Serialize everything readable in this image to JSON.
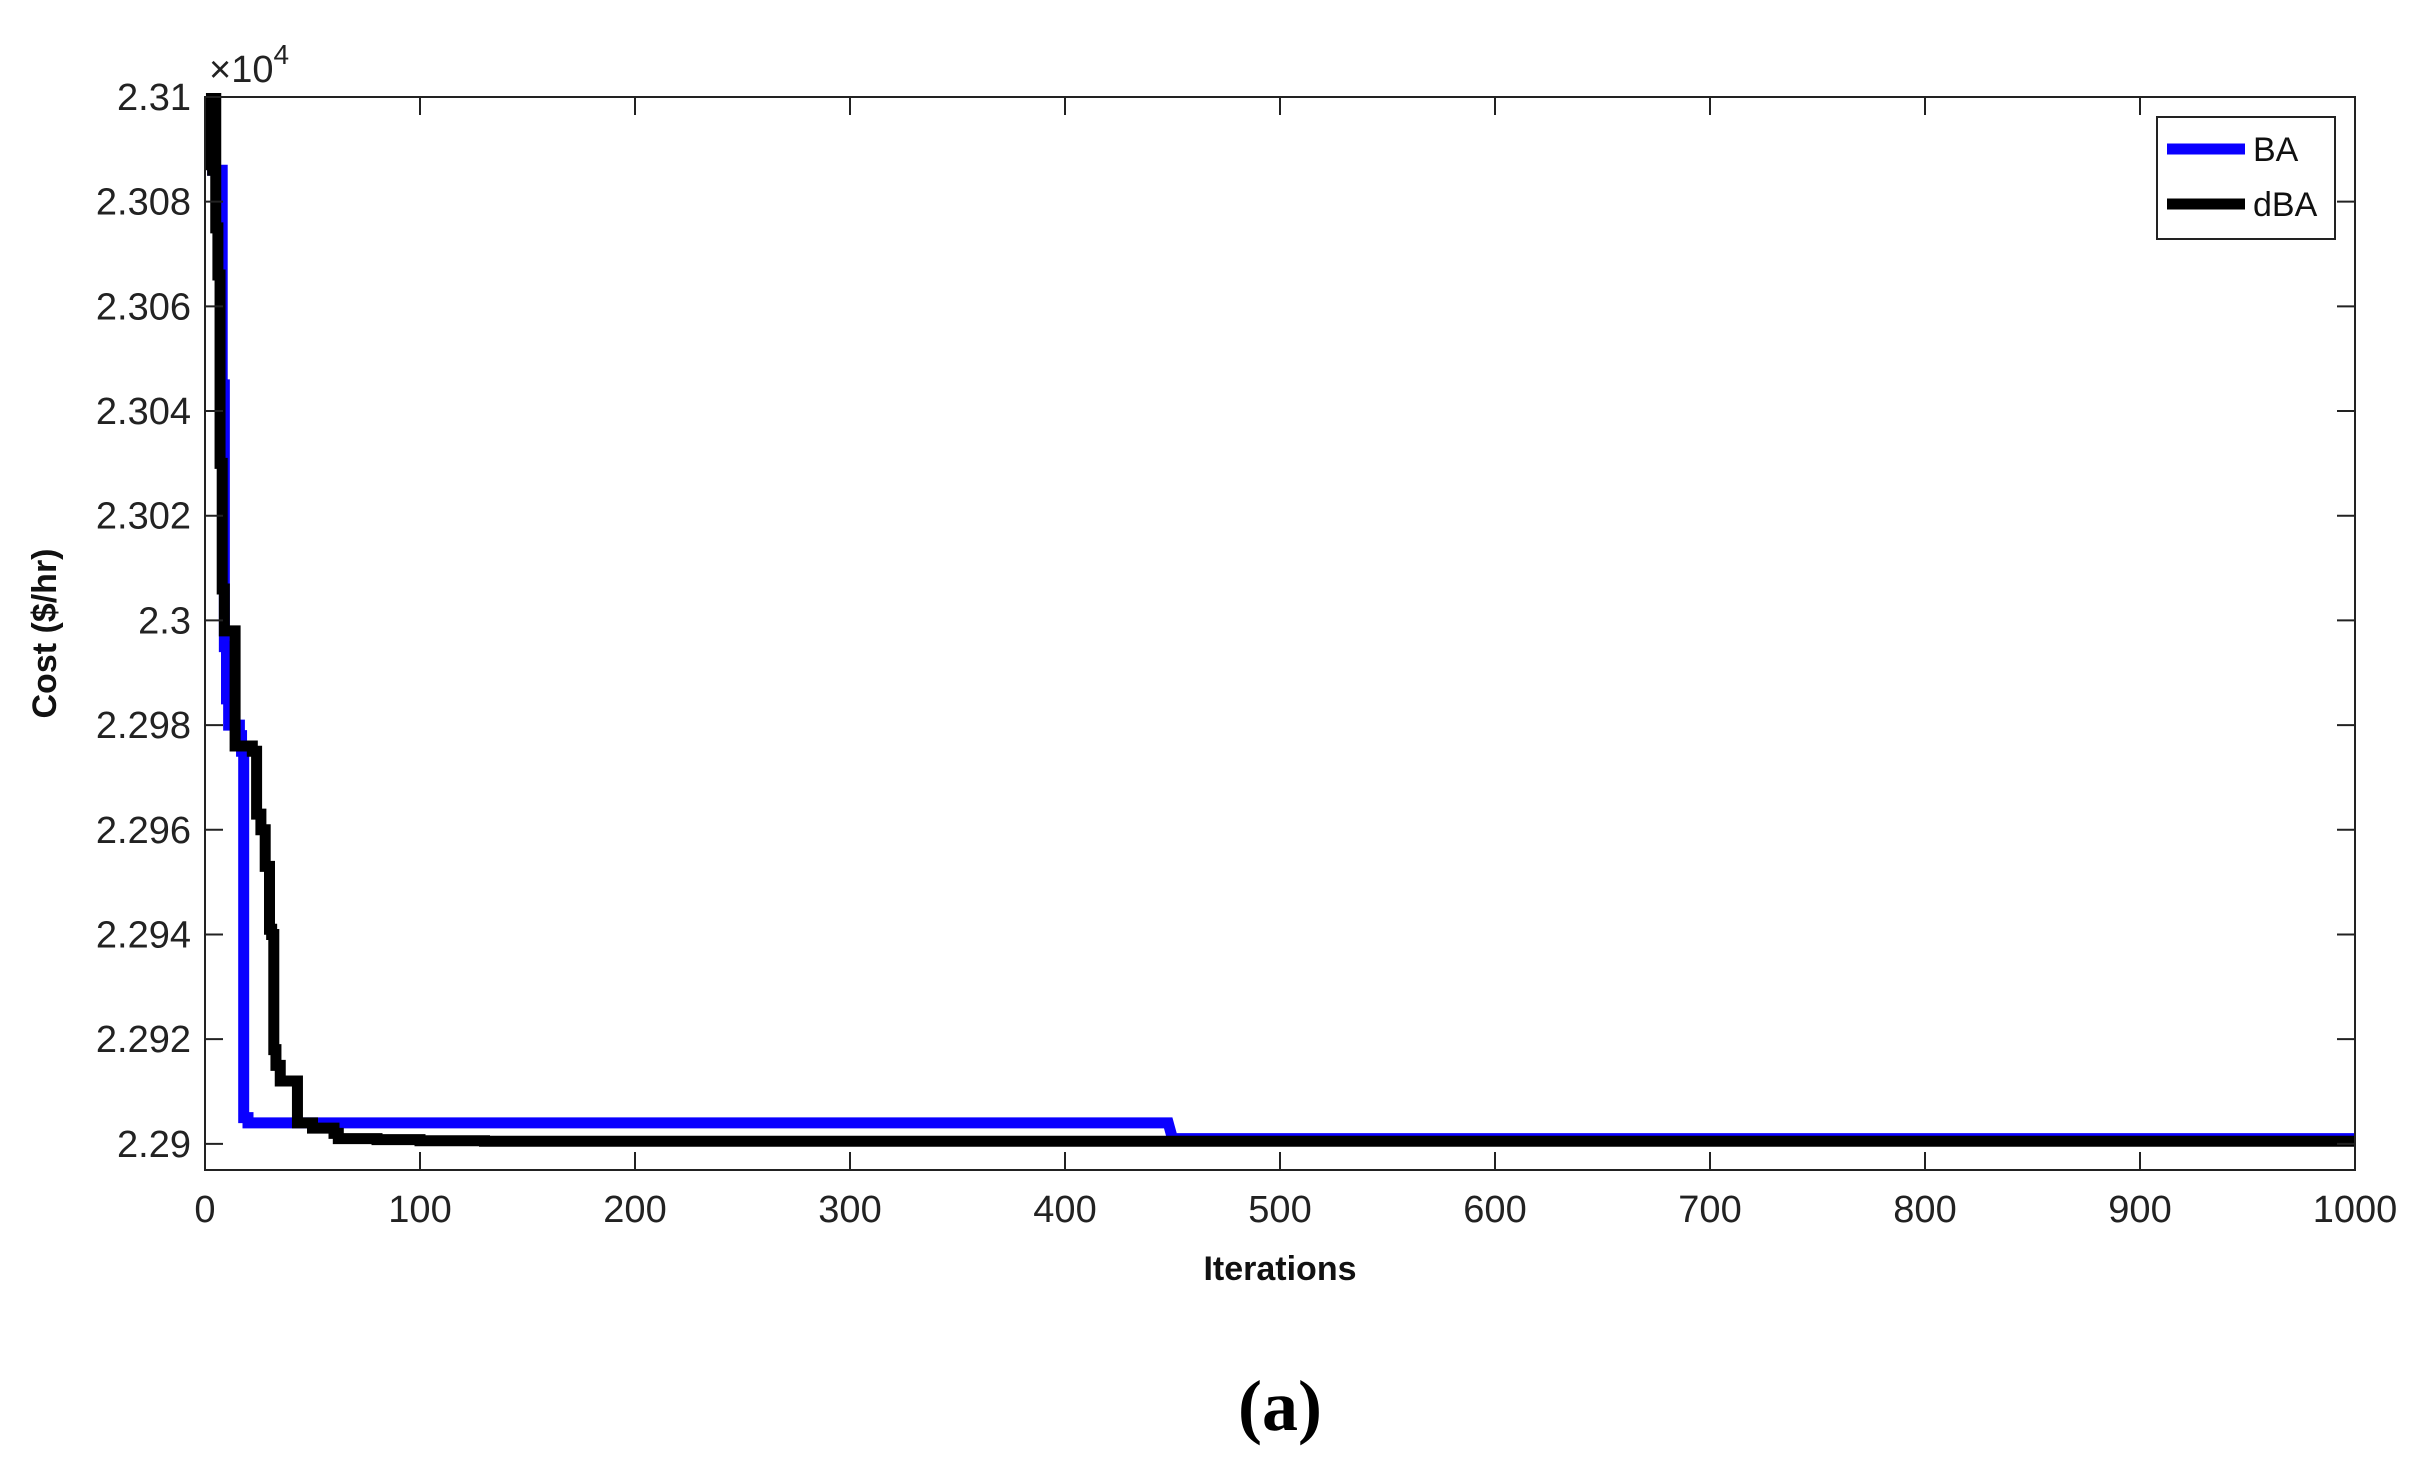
{
  "chart_data": {
    "type": "line",
    "title": "",
    "xlabel": "Iterations",
    "ylabel": "Cost ($/hr)",
    "caption": "(a)",
    "y_exponent_label": "×10",
    "y_exponent_power": "4",
    "y_multiplier": 10000,
    "xlim": [
      0,
      1000
    ],
    "ylim": [
      2.2895,
      2.31
    ],
    "x_ticks": [
      0,
      100,
      200,
      300,
      400,
      500,
      600,
      700,
      800,
      900,
      1000
    ],
    "x_tick_labels": [
      "0",
      "100",
      "200",
      "300",
      "400",
      "500",
      "600",
      "700",
      "800",
      "900",
      "1000"
    ],
    "y_ticks": [
      2.29,
      2.292,
      2.294,
      2.296,
      2.298,
      2.3,
      2.302,
      2.304,
      2.306,
      2.308,
      2.31
    ],
    "y_tick_labels": [
      "2.29",
      "2.292",
      "2.294",
      "2.296",
      "2.298",
      "2.3",
      "2.302",
      "2.304",
      "2.306",
      "2.308",
      "2.31"
    ],
    "grid": false,
    "legend_position": "top-right",
    "series": [
      {
        "name": "BA",
        "color": "#0a00ff",
        "x": [
          1,
          8,
          8,
          9,
          9,
          10,
          10,
          11,
          11,
          16,
          16,
          17,
          17,
          18,
          18,
          20,
          20,
          30,
          30,
          448,
          450,
          1000
        ],
        "y": [
          2.3086,
          2.3086,
          2.3045,
          2.3045,
          2.2995,
          2.2995,
          2.2985,
          2.2985,
          2.298,
          2.298,
          2.2978,
          2.2978,
          2.2975,
          2.2975,
          2.2905,
          2.2905,
          2.2904,
          2.2904,
          2.2904,
          2.2904,
          2.2901,
          2.2901
        ]
      },
      {
        "name": "dBA",
        "color": "#000000",
        "x": [
          1,
          3,
          3,
          5,
          5,
          6,
          6,
          7,
          7,
          8,
          8,
          9,
          9,
          10,
          10,
          12,
          12,
          14,
          14,
          19,
          19,
          22,
          22,
          24,
          24,
          26,
          26,
          28,
          28,
          30,
          30,
          31,
          31,
          32,
          32,
          33,
          33,
          35,
          35,
          37,
          37,
          43,
          43,
          45,
          45,
          50,
          50,
          60,
          60,
          62,
          62,
          80,
          80,
          100,
          100,
          130,
          130,
          1000
        ],
        "y": [
          2.3086,
          2.3086,
          2.31,
          2.31,
          2.3075,
          2.3075,
          2.3066,
          2.3066,
          2.303,
          2.303,
          2.3006,
          2.3006,
          2.2998,
          2.2998,
          2.2998,
          2.2998,
          2.2998,
          2.2998,
          2.2976,
          2.2976,
          2.2976,
          2.2976,
          2.2975,
          2.2975,
          2.2963,
          2.2963,
          2.296,
          2.296,
          2.2953,
          2.2953,
          2.2941,
          2.2941,
          2.294,
          2.294,
          2.2918,
          2.2918,
          2.2915,
          2.2915,
          2.2912,
          2.2912,
          2.2912,
          2.2912,
          2.2904,
          2.2904,
          2.2904,
          2.2904,
          2.2903,
          2.2903,
          2.2902,
          2.2902,
          2.2901,
          2.2901,
          2.29008,
          2.29008,
          2.29006,
          2.29006,
          2.29005,
          2.29005
        ]
      }
    ]
  }
}
